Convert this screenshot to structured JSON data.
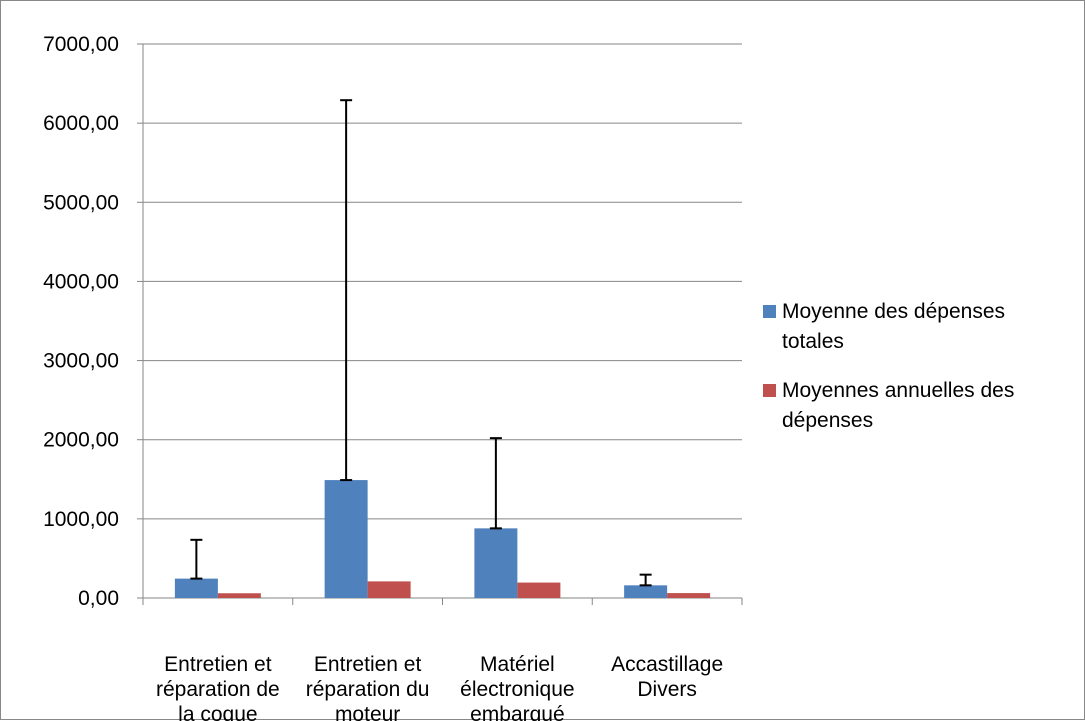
{
  "chart_data": {
    "type": "bar",
    "categories": [
      [
        "Entretien et",
        "réparation de",
        "la coque"
      ],
      [
        "Entretien et",
        "réparation du",
        "moteur"
      ],
      [
        "Matériel",
        "électronique",
        "embarqué"
      ],
      [
        "Accastillage",
        "Divers"
      ]
    ],
    "series": [
      {
        "name": [
          "Moyenne des dépenses",
          "totales"
        ],
        "color": "#4f81bd",
        "values": [
          245,
          1490,
          880,
          160
        ],
        "error_plus": [
          490,
          4800,
          1140,
          135
        ]
      },
      {
        "name": [
          "Moyennes annuelles des",
          "dépenses"
        ],
        "color": "#c0504d",
        "values": [
          60,
          210,
          195,
          62
        ]
      }
    ],
    "ylim": [
      0,
      7000
    ],
    "yticks": [
      "0,00",
      "1000,00",
      "2000,00",
      "3000,00",
      "4000,00",
      "5000,00",
      "6000,00",
      "7000,00"
    ],
    "grid": true,
    "legend": "right"
  }
}
